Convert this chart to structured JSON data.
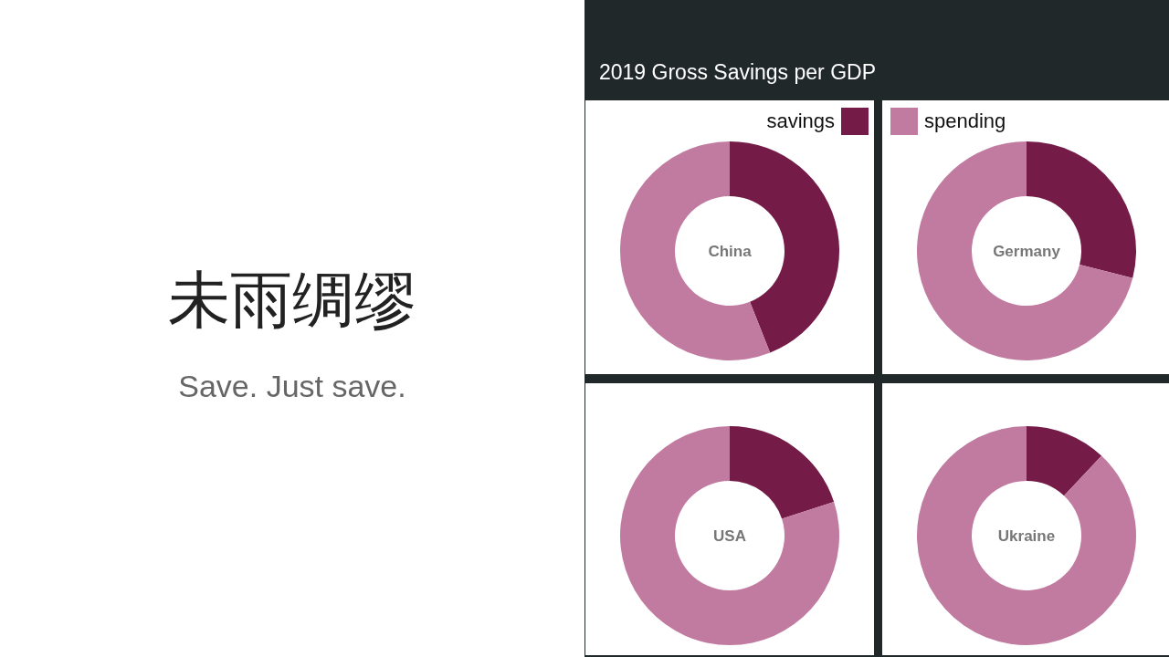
{
  "chart_data": [
    {
      "type": "donut",
      "title": "China",
      "categories": [
        "savings",
        "spending"
      ],
      "values": [
        44,
        56
      ],
      "colors": [
        "#741b47",
        "#c27ba0"
      ],
      "legend": "top",
      "annotations": [
        "未雨绸缪",
        "Save. Just save.",
        "2019 Gross Savings per GDP"
      ]
    },
    {
      "type": "donut",
      "title": "Germany",
      "categories": [
        null,
        null
      ],
      "values": [
        29,
        71
      ],
      "colors": [
        "#741b47",
        "#c27ba0"
      ]
    },
    {
      "type": "donut",
      "title": "USA",
      "categories": [
        null,
        null
      ],
      "values": [
        20,
        80
      ],
      "colors": [
        "#741b47",
        "#c27ba0"
      ]
    },
    {
      "type": "donut",
      "title": "Ukraine",
      "categories": [
        null,
        null
      ],
      "values": [
        12,
        88
      ],
      "colors": [
        "#741b47",
        "#c27ba0"
      ]
    }
  ]
}
